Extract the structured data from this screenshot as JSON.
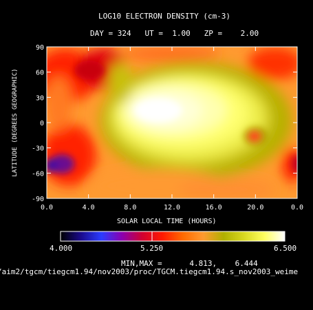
{
  "chart_data": {
    "type": "heatmap",
    "title": "LOG10 ELECTRON DENSITY (cm-3)",
    "subtitle": {
      "day_label": "DAY =",
      "day": "324",
      "ut_label": "UT =",
      "ut": "1.00",
      "zp_label": "ZP =",
      "zp": "2.00"
    },
    "xlabel": "SOLAR LOCAL TIME (HOURS)",
    "ylabel": "LATITUDE (DEGREES GEOGRAPHIC)",
    "x_ticks": [
      "0.0",
      "4.0",
      "8.0",
      "12.0",
      "16.0",
      "20.0",
      "0.0"
    ],
    "y_ticks": [
      "90",
      "60",
      "30",
      "0",
      "-30",
      "-60",
      "-90"
    ],
    "xlim": [
      0,
      24
    ],
    "ylim": [
      -90,
      90
    ],
    "colorbar": {
      "min_label": "4.000",
      "mid_label": "5.250",
      "max_label": "6.500",
      "range": [
        4.0,
        6.5
      ],
      "colors": [
        "#000000",
        "#1a0a8c",
        "#2a3cff",
        "#8a00b0",
        "#d00030",
        "#ff1a00",
        "#ff6a00",
        "#ff9a30",
        "#b0b000",
        "#d8d820",
        "#ffff60",
        "#ffffff"
      ]
    },
    "minmax_label": "MIN,MAX =",
    "min_value": "4.813,",
    "max_value": "6.444",
    "features": [
      {
        "lt": 12.5,
        "lat": 5,
        "value": 6.4
      },
      {
        "lt": 19.5,
        "lat": -12,
        "value": 5.45
      },
      {
        "lt": 3.0,
        "lat": -48,
        "value": 4.85
      },
      {
        "lt": 4.0,
        "lat": 45,
        "value": 5.0
      },
      {
        "lt": 23.5,
        "lat": -55,
        "value": 5.0
      },
      {
        "lt": 9.5,
        "lat": 80,
        "value": 5.5
      }
    ]
  },
  "filepath": "/aim2/tgcm/tiegcm1.94/nov2003/proc/TGCM.tiegcm1.94.s_nov2003_weime"
}
